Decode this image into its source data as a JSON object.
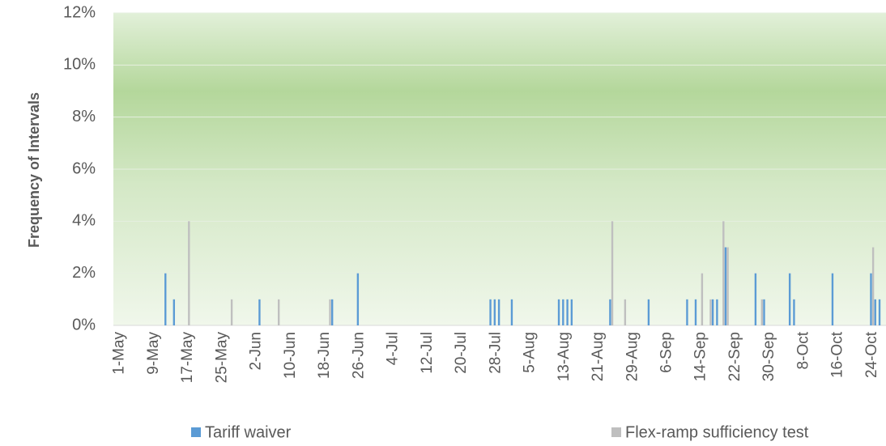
{
  "chart_data": {
    "type": "bar",
    "y_label": "Frequency of Intervals",
    "categories": [
      "1-May",
      null,
      null,
      null,
      null,
      null,
      null,
      null,
      "9-May",
      null,
      null,
      null,
      null,
      null,
      null,
      null,
      "17-May",
      null,
      null,
      null,
      null,
      null,
      null,
      null,
      "25-May",
      null,
      null,
      null,
      null,
      null,
      null,
      null,
      "2-Jun",
      null,
      null,
      null,
      null,
      null,
      null,
      null,
      "10-Jun",
      null,
      null,
      null,
      null,
      null,
      null,
      null,
      "18-Jun",
      null,
      null,
      null,
      null,
      null,
      null,
      null,
      "26-Jun",
      null,
      null,
      null,
      null,
      null,
      null,
      null,
      "4-Jul",
      null,
      null,
      null,
      null,
      null,
      null,
      null,
      "12-Jul",
      null,
      null,
      null,
      null,
      null,
      null,
      null,
      "20-Jul",
      null,
      null,
      null,
      null,
      null,
      null,
      null,
      "28-Jul",
      null,
      null,
      null,
      null,
      null,
      null,
      null,
      "5-Aug",
      null,
      null,
      null,
      null,
      null,
      null,
      null,
      "13-Aug",
      null,
      null,
      null,
      null,
      null,
      null,
      null,
      "21-Aug",
      null,
      null,
      null,
      null,
      null,
      null,
      null,
      "29-Aug",
      null,
      null,
      null,
      null,
      null,
      null,
      null,
      "6-Sep",
      null,
      null,
      null,
      null,
      null,
      null,
      null,
      "14-Sep",
      null,
      null,
      null,
      null,
      null,
      null,
      null,
      "22-Sep",
      null,
      null,
      null,
      null,
      null,
      null,
      null,
      "30-Sep",
      null,
      null,
      null,
      null,
      null,
      null,
      null,
      "8-Oct",
      null,
      null,
      null,
      null,
      null,
      null,
      null,
      "16-Oct",
      null,
      null,
      null,
      null,
      null,
      null,
      null,
      "24-Oct",
      null,
      null,
      null
    ],
    "series": [
      {
        "name": "Tariff waiver",
        "color": "#5b9bd5",
        "values": [
          0,
          0,
          0,
          0,
          0,
          0,
          0,
          0,
          0,
          0,
          0,
          2,
          0,
          1,
          0,
          0,
          0,
          0,
          0,
          0,
          0,
          0,
          0,
          0,
          0,
          0,
          0,
          0,
          0,
          0,
          0,
          0,
          0,
          1,
          0,
          0,
          0,
          0,
          0,
          0,
          0,
          0,
          0,
          0,
          0,
          0,
          0,
          0,
          0,
          0,
          1,
          0,
          0,
          0,
          0,
          0,
          2,
          0,
          0,
          0,
          0,
          0,
          0,
          0,
          0,
          0,
          0,
          0,
          0,
          0,
          0,
          0,
          0,
          0,
          0,
          0,
          0,
          0,
          0,
          0,
          0,
          0,
          0,
          0,
          0,
          0,
          0,
          1,
          1,
          1,
          0,
          0,
          1,
          0,
          0,
          0,
          0,
          0,
          0,
          0,
          0,
          0,
          0,
          1,
          1,
          1,
          1,
          0,
          0,
          0,
          0,
          0,
          0,
          0,
          0,
          1,
          0,
          0,
          0,
          0,
          0,
          0,
          0,
          0,
          1,
          0,
          0,
          0,
          0,
          0,
          0,
          0,
          0,
          1,
          0,
          1,
          0,
          0,
          0,
          1,
          1,
          0,
          3,
          0,
          0,
          0,
          0,
          0,
          0,
          2,
          0,
          1,
          0,
          0,
          0,
          0,
          0,
          2,
          1,
          0,
          0,
          0,
          0,
          0,
          0,
          0,
          0,
          2,
          0,
          0,
          0,
          0,
          0,
          0,
          0,
          0,
          2,
          1,
          1,
          0
        ]
      },
      {
        "name": "Flex-ramp sufficiency test",
        "color": "#bfbfbf",
        "values": [
          0,
          0,
          0,
          0,
          0,
          0,
          0,
          0,
          0,
          0,
          0,
          0,
          0,
          0,
          0,
          0,
          4,
          0,
          0,
          0,
          0,
          0,
          0,
          0,
          0,
          0,
          1,
          0,
          0,
          0,
          0,
          0,
          0,
          0,
          0,
          0,
          0,
          1,
          0,
          0,
          0,
          0,
          0,
          0,
          0,
          0,
          0,
          0,
          0,
          1,
          0,
          0,
          0,
          0,
          0,
          0,
          0,
          0,
          0,
          0,
          0,
          0,
          0,
          0,
          0,
          0,
          0,
          0,
          0,
          0,
          0,
          0,
          0,
          0,
          0,
          0,
          0,
          0,
          0,
          0,
          0,
          0,
          0,
          0,
          0,
          0,
          0,
          0,
          0,
          0,
          0,
          0,
          0,
          0,
          0,
          0,
          0,
          0,
          0,
          0,
          0,
          0,
          0,
          0,
          0,
          0,
          0,
          0,
          0,
          0,
          0,
          0,
          0,
          0,
          0,
          4,
          0,
          0,
          1,
          0,
          0,
          0,
          0,
          0,
          0,
          0,
          0,
          0,
          0,
          0,
          0,
          0,
          0,
          0,
          0,
          0,
          2,
          0,
          1,
          0,
          0,
          4,
          3,
          0,
          0,
          0,
          0,
          0,
          0,
          0,
          1,
          0,
          0,
          0,
          0,
          0,
          0,
          0,
          0,
          0,
          0,
          0,
          0,
          0,
          0,
          0,
          0,
          0,
          0,
          0,
          0,
          0,
          0,
          0,
          0,
          0,
          3,
          0,
          0,
          0
        ]
      }
    ],
    "ylim": [
      0,
      12
    ],
    "yticks": [
      {
        "value": 0,
        "label": "0%"
      },
      {
        "value": 2,
        "label": "2%"
      },
      {
        "value": 4,
        "label": "4%"
      },
      {
        "value": 6,
        "label": "6%"
      },
      {
        "value": 8,
        "label": "8%"
      },
      {
        "value": 10,
        "label": "10%"
      },
      {
        "value": 12,
        "label": "12%"
      }
    ],
    "grid": true,
    "legend": "bottom"
  }
}
